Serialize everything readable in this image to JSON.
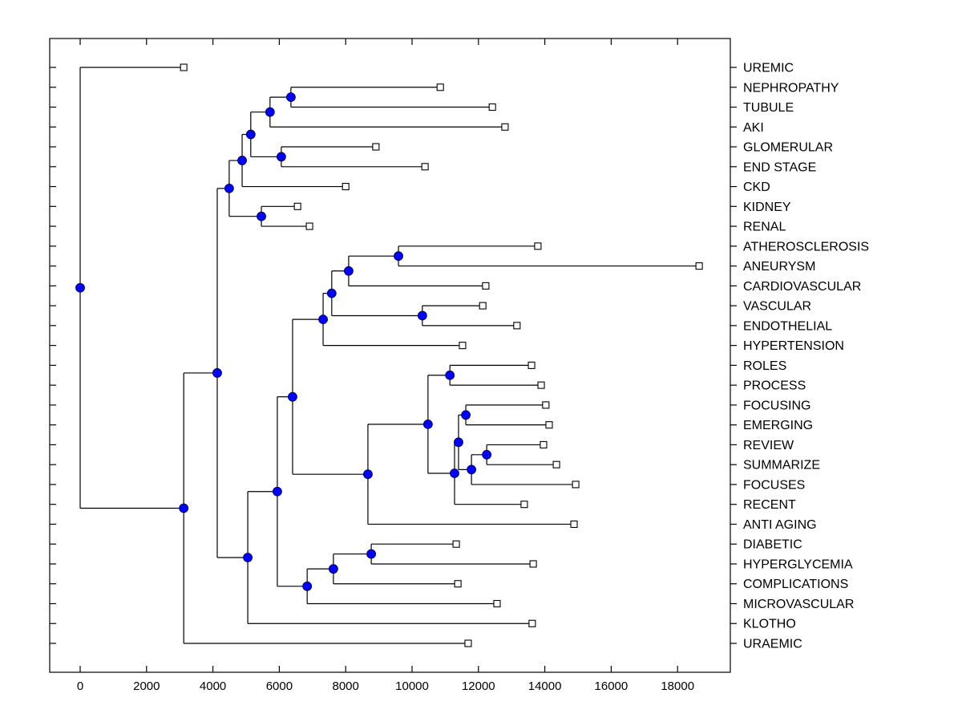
{
  "chart_data": {
    "type": "dendrogram",
    "title": "",
    "xlabel": "",
    "ylabel": "",
    "xlim": [
      -900,
      19600
    ],
    "xticks": [
      0,
      2000,
      4000,
      6000,
      8000,
      10000,
      12000,
      14000,
      16000,
      18000
    ],
    "xtick_labels": [
      "0",
      "2000",
      "4000",
      "6000",
      "8000",
      "10000",
      "12000",
      "14000",
      "16000",
      "18000"
    ],
    "grid": false,
    "node_color": "#0000ff",
    "leaf_marker_color": "#ffffff",
    "leaf_order": [
      "UREMIC",
      "NEPHROPATHY",
      "TUBULE",
      "AKI",
      "GLOMERULAR",
      "END STAGE",
      "CKD",
      "KIDNEY",
      "RENAL",
      "ATHEROSCLEROSIS",
      "ANEURYSM",
      "CARDIOVASCULAR",
      "VASCULAR",
      "ENDOTHELIAL",
      "HYPERTENSION",
      "ROLES",
      "PROCESS",
      "FOCUSING",
      "EMERGING",
      "REVIEW",
      "SUMMARIZE",
      "FOCUSES",
      "RECENT",
      "ANTI AGING",
      "DIABETIC",
      "HYPERGLYCEMIA",
      "COMPLICATIONS",
      "MICROVASCULAR",
      "KLOTHO",
      "URAEMIC"
    ],
    "tree": {
      "x": 0,
      "children": [
        {
          "label": "UREMIC",
          "x": 3120
        },
        {
          "x": 3120,
          "children": [
            {
              "x": 4130,
              "children": [
                {
                  "x": 4490,
                  "children": [
                    {
                      "x": 4880,
                      "children": [
                        {
                          "x": 5140,
                          "children": [
                            {
                              "x": 5720,
                              "children": [
                                {
                                  "x": 6350,
                                  "children": [
                                    {
                                      "label": "NEPHROPATHY",
                                      "x": 10850
                                    },
                                    {
                                      "label": "TUBULE",
                                      "x": 12420
                                    }
                                  ]
                                },
                                {
                                  "label": "AKI",
                                  "x": 12800
                                }
                              ]
                            },
                            {
                              "x": 6060,
                              "children": [
                                {
                                  "label": "GLOMERULAR",
                                  "x": 8910
                                },
                                {
                                  "label": "END STAGE",
                                  "x": 10390
                                }
                              ]
                            }
                          ]
                        },
                        {
                          "label": "CKD",
                          "x": 8000
                        }
                      ]
                    },
                    {
                      "x": 5460,
                      "children": [
                        {
                          "label": "KIDNEY",
                          "x": 6550
                        },
                        {
                          "label": "RENAL",
                          "x": 6910
                        }
                      ]
                    }
                  ]
                },
                {
                  "x": 5050,
                  "children": [
                    {
                      "x": 5940,
                      "children": [
                        {
                          "x": 6400,
                          "children": [
                            {
                              "x": 7320,
                              "children": [
                                {
                                  "x": 7580,
                                  "children": [
                                    {
                                      "x": 8090,
                                      "children": [
                                        {
                                          "x": 9590,
                                          "children": [
                                            {
                                              "label": "ATHEROSCLEROSIS",
                                              "x": 13790
                                            },
                                            {
                                              "label": "ANEURYSM",
                                              "x": 18650
                                            }
                                          ]
                                        },
                                        {
                                          "label": "CARDIOVASCULAR",
                                          "x": 12220
                                        }
                                      ]
                                    },
                                    {
                                      "x": 10310,
                                      "children": [
                                        {
                                          "label": "VASCULAR",
                                          "x": 12130
                                        },
                                        {
                                          "label": "ENDOTHELIAL",
                                          "x": 13160
                                        }
                                      ]
                                    }
                                  ]
                                },
                                {
                                  "label": "HYPERTENSION",
                                  "x": 11520
                                }
                              ]
                            },
                            {
                              "x": 8670,
                              "children": [
                                {
                                  "x": 10480,
                                  "children": [
                                    {
                                      "x": 11140,
                                      "children": [
                                        {
                                          "label": "ROLES",
                                          "x": 13600
                                        },
                                        {
                                          "label": "PROCESS",
                                          "x": 13890
                                        }
                                      ]
                                    },
                                    {
                                      "x": 11280,
                                      "children": [
                                        {
                                          "x": 11400,
                                          "children": [
                                            {
                                              "x": 11620,
                                              "children": [
                                                {
                                                  "label": "FOCUSING",
                                                  "x": 14030
                                                },
                                                {
                                                  "label": "EMERGING",
                                                  "x": 14130
                                                }
                                              ]
                                            },
                                            {
                                              "x": 11790,
                                              "children": [
                                                {
                                                  "x": 12250,
                                                  "children": [
                                                    {
                                                      "label": "REVIEW",
                                                      "x": 13960
                                                    },
                                                    {
                                                      "label": "SUMMARIZE",
                                                      "x": 14350
                                                    }
                                                  ]
                                                },
                                                {
                                                  "label": "FOCUSES",
                                                  "x": 14930
                                                }
                                              ]
                                            }
                                          ]
                                        },
                                        {
                                          "label": "RECENT",
                                          "x": 13380
                                        }
                                      ]
                                    }
                                  ]
                                },
                                {
                                  "label": "ANTI AGING",
                                  "x": 14880
                                }
                              ]
                            }
                          ]
                        },
                        {
                          "x": 6840,
                          "children": [
                            {
                              "x": 7630,
                              "children": [
                                {
                                  "x": 8770,
                                  "children": [
                                    {
                                      "label": "DIABETIC",
                                      "x": 11330
                                    },
                                    {
                                      "label": "HYPERGLYCEMIA",
                                      "x": 13650
                                    }
                                  ]
                                },
                                {
                                  "label": "COMPLICATIONS",
                                  "x": 11380
                                }
                              ]
                            },
                            {
                              "label": "MICROVASCULAR",
                              "x": 12560
                            }
                          ]
                        }
                      ]
                    },
                    {
                      "label": "KLOTHO",
                      "x": 13620
                    }
                  ]
                }
              ]
            },
            {
              "label": "URAEMIC",
              "x": 11690
            }
          ]
        }
      ]
    }
  }
}
